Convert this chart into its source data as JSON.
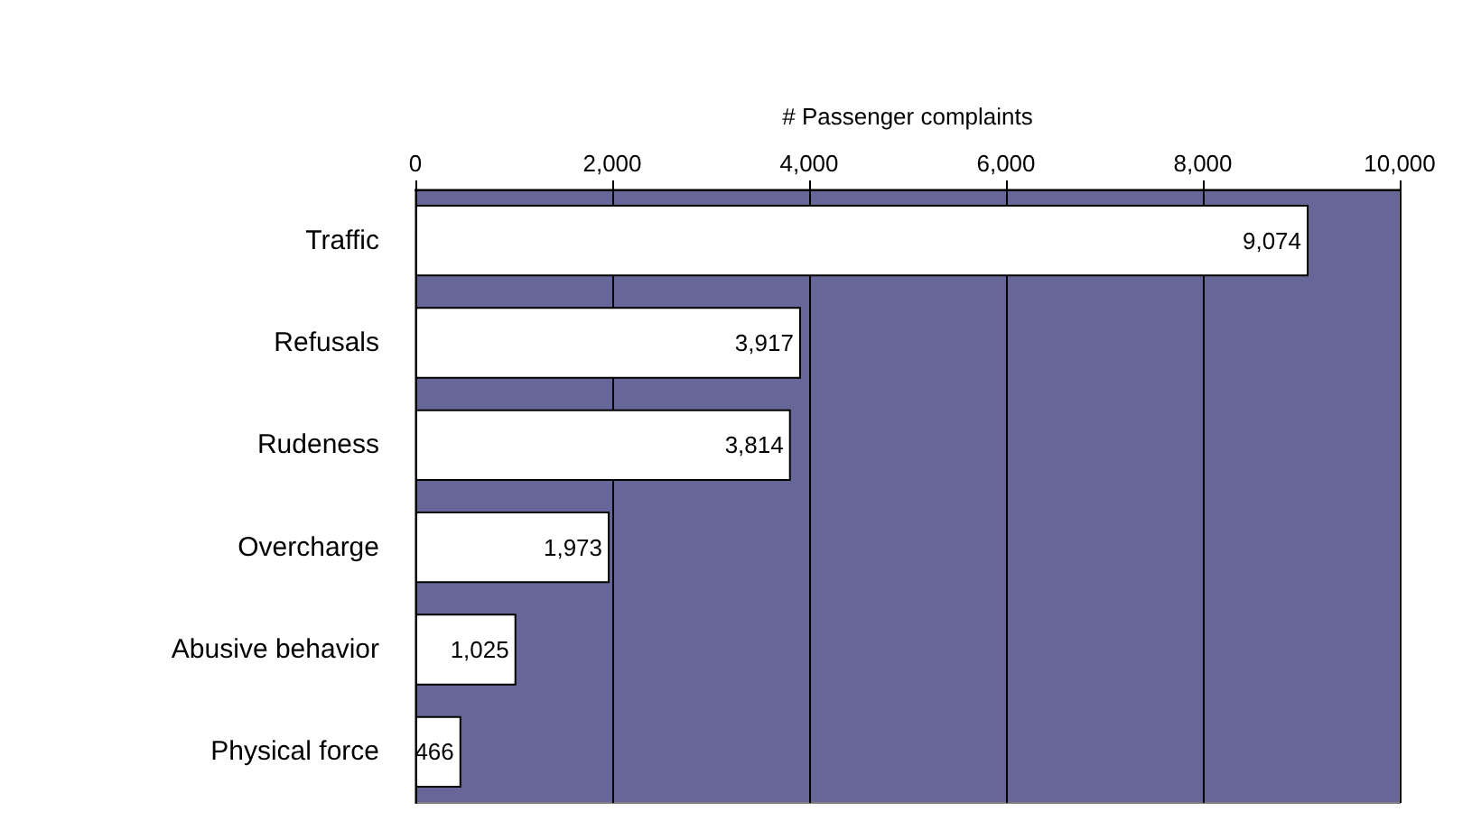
{
  "chart_data": {
    "type": "bar",
    "orientation": "horizontal",
    "xlabel": "# Passenger complaints",
    "categories": [
      "Traffic",
      "Refusals",
      "Rudeness",
      "Overcharge",
      "Abusive behavior",
      "Physical force"
    ],
    "values": [
      9074,
      3917,
      3814,
      1973,
      1025,
      466
    ],
    "value_labels": [
      "9,074",
      "3,917",
      "3,814",
      "1,973",
      "1,025",
      "466"
    ],
    "color": "#ffffff",
    "xlim": [
      0,
      10000
    ],
    "xticks": [
      0,
      {
        "value": 2000,
        "label": "2,000"
      },
      {
        "value": 4000,
        "label": "4,000"
      },
      {
        "value": 6000,
        "label": "6,000"
      },
      {
        "value": 8000,
        "label": "8,000"
      },
      {
        "value": 10000,
        "label": "10,000"
      }
    ],
    "grid": "x"
  }
}
